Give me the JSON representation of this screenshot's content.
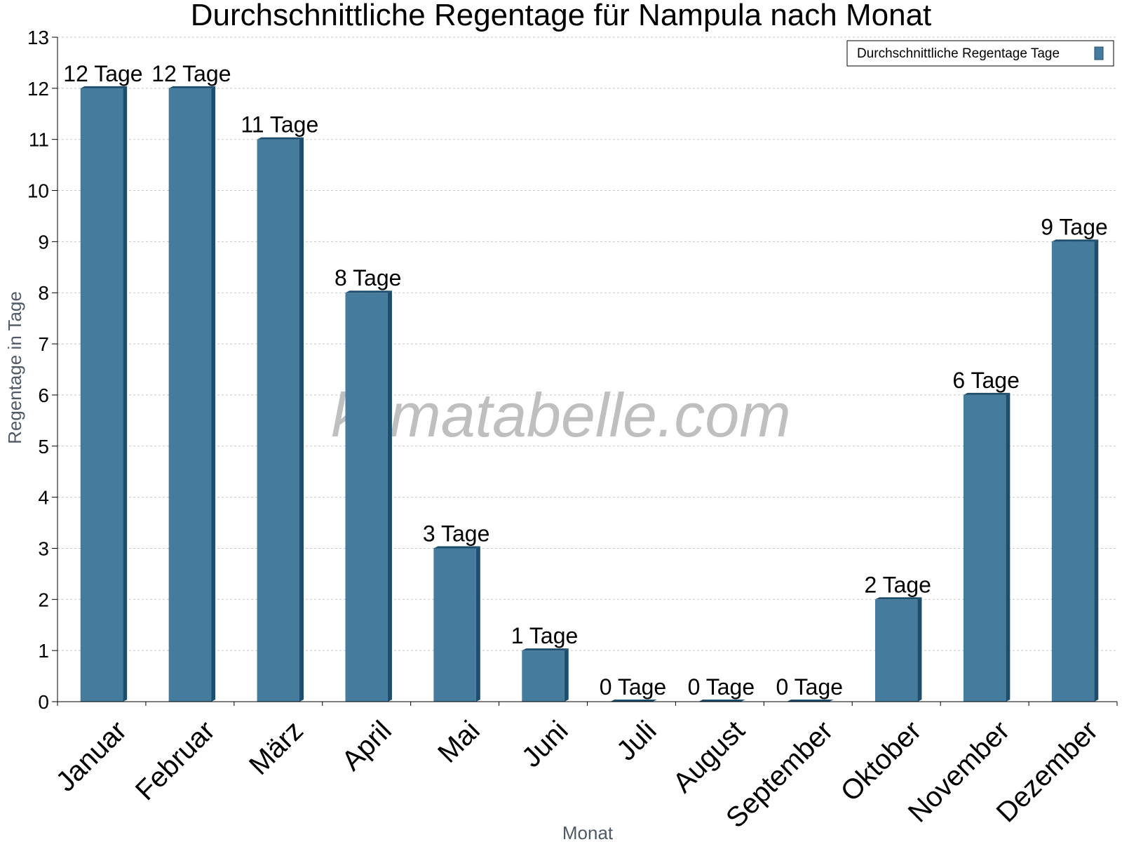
{
  "chart_data": {
    "type": "bar",
    "title": "Durchschnittliche Regentage für Nampula nach Monat",
    "xlabel": "Monat",
    "ylabel": "Regentage in Tage",
    "ylim": [
      0,
      13
    ],
    "yticks": [
      0,
      1,
      2,
      3,
      4,
      5,
      6,
      7,
      8,
      9,
      10,
      11,
      12,
      13
    ],
    "grid": true,
    "legend_position": "top-right",
    "categories": [
      "Januar",
      "Februar",
      "März",
      "April",
      "Mai",
      "Juni",
      "Juli",
      "August",
      "September",
      "Oktober",
      "November",
      "Dezember"
    ],
    "series": [
      {
        "name": "Durchschnittliche Regentage Tage",
        "values": [
          12,
          12,
          11,
          8,
          3,
          1,
          0,
          0,
          0,
          2,
          6,
          9
        ],
        "labels": [
          "12 Tage",
          "12 Tage",
          "11 Tage",
          "8 Tage",
          "3 Tage",
          "1 Tage",
          "0 Tage",
          "0 Tage",
          "0 Tage",
          "2 Tage",
          "6 Tage",
          "9 Tage"
        ]
      }
    ],
    "colors": {
      "bar": "#457b9d",
      "bar_side": "#1d4e6e",
      "grid": "#c8c8c8",
      "axis": "#000000"
    },
    "watermark": "klimatabelle.com"
  }
}
